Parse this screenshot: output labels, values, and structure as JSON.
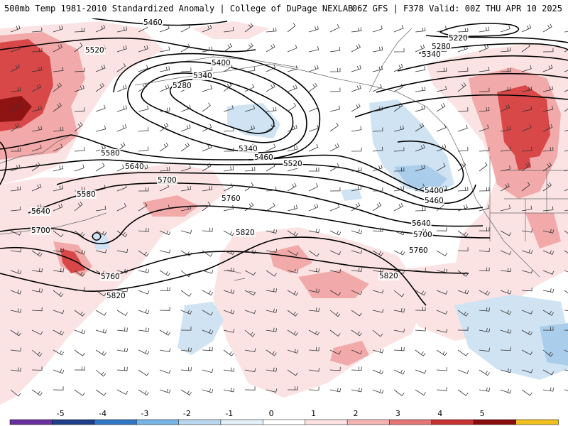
{
  "header": {
    "title_left": "500mb Temp 1981-2010 Standardized Anomaly | College of DuPage NEXLAB",
    "title_right": "06Z GFS | F378 Valid: 00Z THU APR 10 2025"
  },
  "contour_labels": [
    "5460",
    "5520",
    "5400",
    "5340",
    "5280",
    "5220",
    "5280",
    "5340",
    "5340",
    "5460",
    "5520",
    "5580",
    "5640",
    "5700",
    "5760",
    "5580",
    "5640",
    "5700",
    "5760",
    "5820",
    "5820",
    "5820",
    "5400",
    "5460",
    "5640",
    "5700",
    "5760"
  ],
  "colorbar": {
    "ticks": [
      "-5",
      "-4",
      "-3",
      "-2",
      "-1",
      "0",
      "1",
      "2",
      "3",
      "4",
      "5"
    ],
    "colors": [
      "#6a2f9e",
      "#1f3e8a",
      "#2f77c4",
      "#79b3e3",
      "#b9d7ee",
      "#e2eff8",
      "#ffffff",
      "#fbe1e1",
      "#f4b3b3",
      "#e47575",
      "#c53232",
      "#8a0d0d",
      "#f0c020"
    ]
  },
  "colors": {
    "positive_light": "#f7d0d0",
    "positive_mid": "#eea3a3",
    "positive_strong": "#d94a4a",
    "positive_max": "#8e1414",
    "negative_light": "#cfe3f3",
    "negative_mid": "#a3c9ea",
    "contour": "#000000",
    "coast": "#666666"
  }
}
